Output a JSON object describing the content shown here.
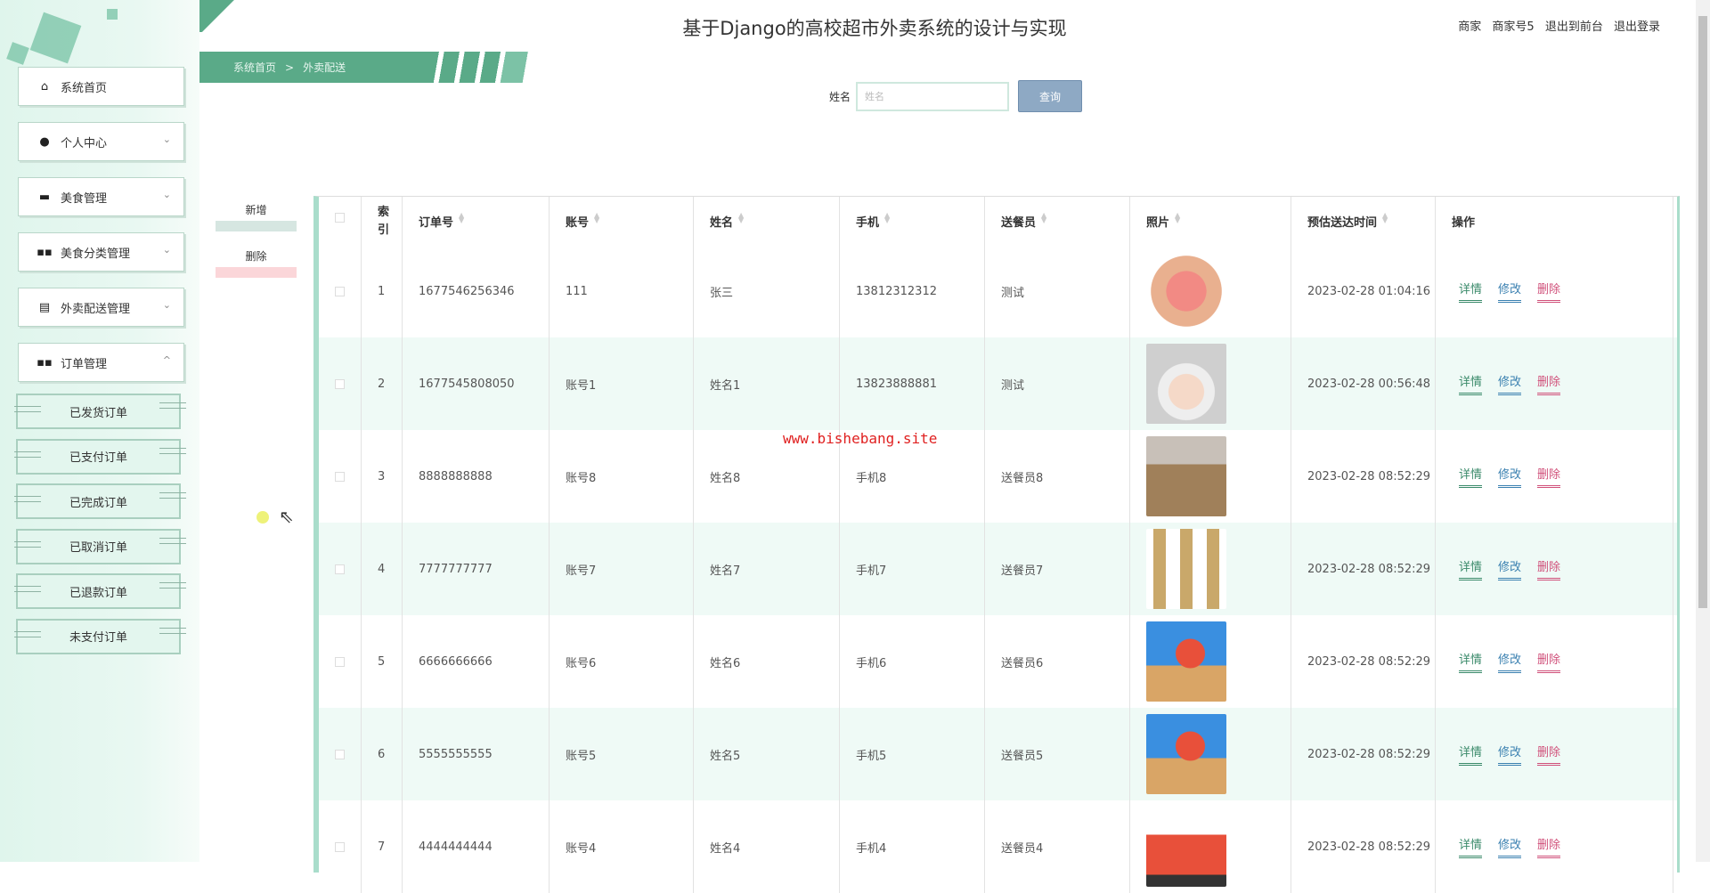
{
  "header": {
    "title": "基于Django的高校超市外卖系统的设计与实现",
    "user_role": "商家",
    "user_name": "商家号5",
    "to_front": "退出到前台",
    "logout": "退出登录"
  },
  "breadcrumb": {
    "home": "系统首页",
    "separator": ">",
    "current": "外卖配送"
  },
  "sidebar": {
    "items": [
      {
        "label": "系统首页",
        "icon": "home-icon",
        "expand": ""
      },
      {
        "label": "个人中心",
        "icon": "user-icon",
        "expand": "⌄"
      },
      {
        "label": "美食管理",
        "icon": "briefcase-icon",
        "expand": "⌄"
      },
      {
        "label": "美食分类管理",
        "icon": "grid-icon",
        "expand": "⌄"
      },
      {
        "label": "外卖配送管理",
        "icon": "clipboard-icon",
        "expand": "⌄"
      },
      {
        "label": "订单管理",
        "icon": "grid-icon",
        "expand": "^"
      }
    ],
    "subitems": [
      "已发货订单",
      "已支付订单",
      "已完成订单",
      "已取消订单",
      "已退款订单",
      "未支付订单"
    ]
  },
  "search": {
    "label": "姓名",
    "placeholder": "姓名",
    "value": "",
    "button": "查询"
  },
  "actions": {
    "add": "新增",
    "delete": "删除"
  },
  "table": {
    "columns": [
      "",
      "索引",
      "订单号",
      "账号",
      "姓名",
      "手机",
      "送餐员",
      "照片",
      "预估送达时间",
      "操作"
    ],
    "row_actions": {
      "detail": "详情",
      "edit": "修改",
      "delete": "删除"
    },
    "rows": [
      {
        "index": "1",
        "order_no": "1677546256346",
        "account": "111",
        "name": "张三",
        "phone": "13812312312",
        "courier": "测试",
        "photo": "peaches",
        "eta": "2023-02-28 01:04:16"
      },
      {
        "index": "2",
        "order_no": "1677545808050",
        "account": "账号1",
        "name": "姓名1",
        "phone": "13823888881",
        "courier": "测试",
        "photo": "child",
        "eta": "2023-02-28 00:56:48"
      },
      {
        "index": "3",
        "order_no": "8888888888",
        "account": "账号8",
        "name": "姓名8",
        "phone": "手机8",
        "courier": "送餐员8",
        "photo": "boxes",
        "eta": "2023-02-28 08:52:29"
      },
      {
        "index": "4",
        "order_no": "7777777777",
        "account": "账号7",
        "name": "姓名7",
        "phone": "手机7",
        "courier": "送餐员7",
        "photo": "icons",
        "eta": "2023-02-28 08:52:29"
      },
      {
        "index": "5",
        "order_no": "6666666666",
        "account": "账号6",
        "name": "姓名6",
        "phone": "手机6",
        "courier": "送餐员6",
        "photo": "courier",
        "eta": "2023-02-28 08:52:29"
      },
      {
        "index": "6",
        "order_no": "5555555555",
        "account": "账号5",
        "name": "姓名5",
        "phone": "手机5",
        "courier": "送餐员5",
        "photo": "courier",
        "eta": "2023-02-28 08:52:29"
      },
      {
        "index": "7",
        "order_no": "4444444444",
        "account": "账号4",
        "name": "姓名4",
        "phone": "手机4",
        "courier": "送餐员4",
        "photo": "truck",
        "eta": "2023-02-28 08:52:29"
      }
    ]
  },
  "watermark": "www.bishebang.site",
  "colors": {
    "accent": "#5aaa88",
    "detail": "#3a8a6a",
    "edit": "#3a80b0",
    "delete": "#d0507a",
    "button": "#8ea9c4"
  }
}
